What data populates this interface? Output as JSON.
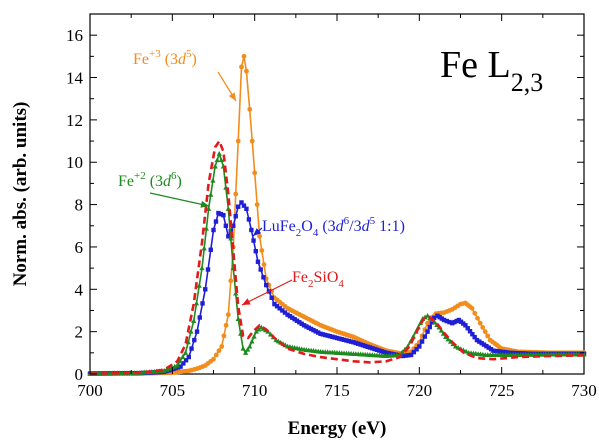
{
  "chart_data": {
    "type": "line",
    "title": "Fe L2,3",
    "xlabel": "Energy (eV)",
    "ylabel": "Norm. abs. (arb. units)",
    "xlim": [
      700,
      730
    ],
    "ylim": [
      0,
      17
    ],
    "x_ticks": [
      "700",
      "705",
      "710",
      "715",
      "720",
      "725",
      "730"
    ],
    "y_ticks": [
      "0",
      "2",
      "4",
      "6",
      "8",
      "10",
      "12",
      "14",
      "16"
    ],
    "grid": false,
    "colors": {
      "fe3": "#f28c1c",
      "lufe2o4": "#1f1fd6",
      "fe2": "#1f8a1f",
      "fe2sio4": "#e31a1c"
    },
    "annotations": [
      {
        "id": "fe3",
        "parts": [
          [
            "Fe",
            "n"
          ],
          [
            "+3",
            "sup"
          ],
          [
            " (3",
            "n"
          ],
          [
            "d",
            "i"
          ],
          [
            "5",
            "sup"
          ],
          [
            ")",
            "n"
          ]
        ],
        "color": "#f28c1c"
      },
      {
        "id": "fe2",
        "parts": [
          [
            "Fe",
            "n"
          ],
          [
            "+2",
            "sup"
          ],
          [
            " (3",
            "n"
          ],
          [
            "d",
            "i"
          ],
          [
            "6",
            "sup"
          ],
          [
            ")",
            "n"
          ]
        ],
        "color": "#1f8a1f"
      },
      {
        "id": "lufe2o4",
        "parts": [
          [
            "LuFe",
            "n"
          ],
          [
            "2",
            "sub"
          ],
          [
            "O",
            "n"
          ],
          [
            "4",
            "sub"
          ],
          [
            " (3",
            "n"
          ],
          [
            "d",
            "i"
          ],
          [
            "6",
            "sup"
          ],
          [
            "/3",
            "n"
          ],
          [
            "d",
            "i"
          ],
          [
            "5",
            "sup"
          ],
          [
            " 1:1)",
            "n"
          ]
        ],
        "color": "#1f1fd6"
      },
      {
        "id": "fe2sio4",
        "parts": [
          [
            "Fe",
            "n"
          ],
          [
            "2",
            "sub"
          ],
          [
            "SiO",
            "n"
          ],
          [
            "4",
            "sub"
          ]
        ],
        "color": "#e31a1c"
      }
    ],
    "series": [
      {
        "key": "fe3",
        "style": "circle-line",
        "points": [
          [
            700,
            0.02
          ],
          [
            703,
            0.03
          ],
          [
            705,
            0.06
          ],
          [
            706,
            0.15
          ],
          [
            706.5,
            0.25
          ],
          [
            707,
            0.4
          ],
          [
            707.5,
            0.7
          ],
          [
            708,
            1.3
          ],
          [
            708.4,
            2.8
          ],
          [
            708.7,
            6.0
          ],
          [
            709.0,
            11.0
          ],
          [
            709.2,
            14.5
          ],
          [
            709.35,
            15.0
          ],
          [
            709.5,
            14.3
          ],
          [
            709.7,
            12.5
          ],
          [
            710.0,
            9.5
          ],
          [
            710.3,
            6.5
          ],
          [
            710.7,
            4.5
          ],
          [
            711.2,
            3.6
          ],
          [
            712,
            3.1
          ],
          [
            713,
            2.7
          ],
          [
            714,
            2.3
          ],
          [
            715,
            2.0
          ],
          [
            716,
            1.75
          ],
          [
            717,
            1.4
          ],
          [
            718,
            1.1
          ],
          [
            719,
            0.95
          ],
          [
            719.5,
            1.05
          ],
          [
            720,
            1.5
          ],
          [
            720.5,
            2.4
          ],
          [
            721,
            2.85
          ],
          [
            721.5,
            2.9
          ],
          [
            722,
            3.05
          ],
          [
            722.5,
            3.3
          ],
          [
            722.8,
            3.35
          ],
          [
            723.2,
            3.1
          ],
          [
            723.7,
            2.4
          ],
          [
            724.3,
            1.6
          ],
          [
            725,
            1.2
          ],
          [
            726,
            1.05
          ],
          [
            728,
            1.0
          ],
          [
            730,
            1.0
          ]
        ]
      },
      {
        "key": "lufe2o4",
        "style": "square-line",
        "points": [
          [
            700,
            0.02
          ],
          [
            703,
            0.04
          ],
          [
            704.5,
            0.1
          ],
          [
            705.5,
            0.35
          ],
          [
            706,
            0.8
          ],
          [
            706.5,
            2.0
          ],
          [
            707,
            4.0
          ],
          [
            707.5,
            6.8
          ],
          [
            707.8,
            7.6
          ],
          [
            708.1,
            7.5
          ],
          [
            708.4,
            6.5
          ],
          [
            708.7,
            7.0
          ],
          [
            709.0,
            7.9
          ],
          [
            709.2,
            8.1
          ],
          [
            709.5,
            7.8
          ],
          [
            709.8,
            6.8
          ],
          [
            710.2,
            5.3
          ],
          [
            710.7,
            4.2
          ],
          [
            711.2,
            3.3
          ],
          [
            712,
            2.8
          ],
          [
            713,
            2.3
          ],
          [
            714,
            1.9
          ],
          [
            715,
            1.7
          ],
          [
            716,
            1.5
          ],
          [
            717,
            1.25
          ],
          [
            718,
            1.0
          ],
          [
            719,
            0.85
          ],
          [
            719.5,
            0.9
          ],
          [
            720,
            1.3
          ],
          [
            720.5,
            2.0
          ],
          [
            720.9,
            2.65
          ],
          [
            721.1,
            2.75
          ],
          [
            721.5,
            2.55
          ],
          [
            722,
            2.4
          ],
          [
            722.4,
            2.55
          ],
          [
            722.8,
            2.3
          ],
          [
            723.5,
            1.6
          ],
          [
            724.5,
            1.1
          ],
          [
            725.5,
            1.0
          ],
          [
            727,
            0.95
          ],
          [
            730,
            0.95
          ]
        ]
      },
      {
        "key": "fe2",
        "style": "triangle-line",
        "points": [
          [
            700,
            0.02
          ],
          [
            703,
            0.05
          ],
          [
            704.5,
            0.15
          ],
          [
            705.3,
            0.4
          ],
          [
            705.8,
            1.0
          ],
          [
            706.3,
            2.5
          ],
          [
            706.8,
            5.0
          ],
          [
            707.2,
            7.8
          ],
          [
            707.6,
            9.8
          ],
          [
            707.85,
            10.4
          ],
          [
            708.1,
            9.8
          ],
          [
            708.4,
            7.8
          ],
          [
            708.7,
            5.0
          ],
          [
            709.0,
            2.6
          ],
          [
            709.3,
            1.2
          ],
          [
            709.45,
            1.0
          ],
          [
            709.7,
            1.3
          ],
          [
            710.1,
            2.0
          ],
          [
            710.4,
            2.2
          ],
          [
            710.8,
            2.0
          ],
          [
            711.3,
            1.6
          ],
          [
            712,
            1.3
          ],
          [
            713,
            1.15
          ],
          [
            714,
            1.05
          ],
          [
            715,
            1.0
          ],
          [
            716,
            0.95
          ],
          [
            717,
            0.9
          ],
          [
            718,
            0.85
          ],
          [
            718.8,
            0.9
          ],
          [
            719.3,
            1.3
          ],
          [
            719.8,
            2.0
          ],
          [
            720.2,
            2.6
          ],
          [
            720.5,
            2.75
          ],
          [
            720.8,
            2.55
          ],
          [
            721.2,
            2.2
          ],
          [
            721.6,
            1.75
          ],
          [
            722.2,
            1.3
          ],
          [
            723,
            1.0
          ],
          [
            724,
            0.9
          ],
          [
            726,
            0.9
          ],
          [
            728,
            0.92
          ],
          [
            730,
            0.92
          ]
        ]
      },
      {
        "key": "fe2sio4",
        "style": "dashed",
        "points": [
          [
            700,
            0.02
          ],
          [
            703,
            0.05
          ],
          [
            704.5,
            0.2
          ],
          [
            705.3,
            0.6
          ],
          [
            705.8,
            1.4
          ],
          [
            706.3,
            3.3
          ],
          [
            706.8,
            6.2
          ],
          [
            707.2,
            9.0
          ],
          [
            707.6,
            10.7
          ],
          [
            707.85,
            11.0
          ],
          [
            708.1,
            10.5
          ],
          [
            708.4,
            8.5
          ],
          [
            708.7,
            5.8
          ],
          [
            709.0,
            3.2
          ],
          [
            709.3,
            1.8
          ],
          [
            709.6,
            1.7
          ],
          [
            709.9,
            2.0
          ],
          [
            710.3,
            2.3
          ],
          [
            710.7,
            2.1
          ],
          [
            711.2,
            1.7
          ],
          [
            712,
            1.2
          ],
          [
            713,
            0.95
          ],
          [
            714,
            0.8
          ],
          [
            715,
            0.7
          ],
          [
            716,
            0.6
          ],
          [
            717,
            0.55
          ],
          [
            718,
            0.6
          ],
          [
            718.8,
            0.8
          ],
          [
            719.4,
            1.3
          ],
          [
            719.9,
            2.1
          ],
          [
            720.3,
            2.65
          ],
          [
            720.6,
            2.7
          ],
          [
            721.0,
            2.45
          ],
          [
            721.5,
            1.95
          ],
          [
            722,
            1.5
          ],
          [
            722.7,
            1.0
          ],
          [
            723.5,
            0.75
          ],
          [
            724.5,
            0.7
          ],
          [
            726,
            0.8
          ],
          [
            728,
            0.85
          ],
          [
            730,
            0.88
          ]
        ]
      }
    ]
  }
}
